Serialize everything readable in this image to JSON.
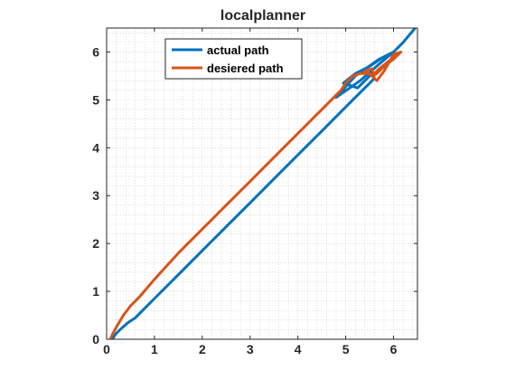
{
  "chart_data": {
    "type": "line",
    "title": "localplanner",
    "xlabel": "",
    "ylabel": "",
    "xlim": [
      0,
      6.5
    ],
    "ylim": [
      0,
      6.5
    ],
    "xticks": [
      "0",
      "1",
      "2",
      "3",
      "4",
      "5",
      "6"
    ],
    "yticks": [
      "0",
      "1",
      "2",
      "3",
      "4",
      "5",
      "6"
    ],
    "grid": "minor dotted",
    "legend_position": "top-left",
    "series": [
      {
        "name": "actual path",
        "color": "#0072BD",
        "points": [
          [
            0.12,
            0.0
          ],
          [
            0.15,
            0.05
          ],
          [
            0.2,
            0.12
          ],
          [
            0.3,
            0.22
          ],
          [
            0.45,
            0.35
          ],
          [
            0.6,
            0.45
          ],
          [
            0.7,
            0.55
          ],
          [
            1.0,
            0.85
          ],
          [
            1.5,
            1.35
          ],
          [
            2.0,
            1.85
          ],
          [
            2.5,
            2.35
          ],
          [
            3.0,
            2.85
          ],
          [
            3.5,
            3.35
          ],
          [
            4.0,
            3.85
          ],
          [
            4.5,
            4.35
          ],
          [
            4.8,
            4.65
          ],
          [
            5.0,
            4.85
          ],
          [
            5.2,
            5.05
          ],
          [
            5.5,
            5.35
          ],
          [
            5.6,
            5.45
          ],
          [
            5.55,
            5.55
          ],
          [
            5.25,
            5.25
          ],
          [
            4.95,
            5.35
          ],
          [
            5.2,
            5.55
          ],
          [
            5.5,
            5.7
          ],
          [
            5.8,
            5.9
          ],
          [
            6.0,
            6.0
          ],
          [
            5.7,
            5.85
          ],
          [
            5.2,
            5.5
          ],
          [
            4.8,
            5.05
          ],
          [
            5.3,
            5.4
          ],
          [
            5.7,
            5.75
          ],
          [
            6.0,
            6.0
          ],
          [
            6.2,
            6.2
          ],
          [
            6.45,
            6.5
          ]
        ]
      },
      {
        "name": "desiered path",
        "color": "#D95319",
        "points": [
          [
            0.08,
            0.0
          ],
          [
            0.12,
            0.1
          ],
          [
            0.2,
            0.25
          ],
          [
            0.35,
            0.5
          ],
          [
            0.5,
            0.7
          ],
          [
            0.7,
            0.9
          ],
          [
            1.0,
            1.25
          ],
          [
            1.5,
            1.8
          ],
          [
            2.0,
            2.3
          ],
          [
            2.5,
            2.8
          ],
          [
            3.0,
            3.3
          ],
          [
            3.5,
            3.8
          ],
          [
            4.0,
            4.3
          ],
          [
            4.5,
            4.8
          ],
          [
            4.9,
            5.2
          ],
          [
            5.0,
            5.35
          ],
          [
            5.15,
            5.5
          ],
          [
            5.3,
            5.55
          ],
          [
            5.5,
            5.55
          ],
          [
            5.6,
            5.45
          ],
          [
            5.55,
            5.65
          ],
          [
            5.4,
            5.6
          ],
          [
            5.55,
            5.5
          ],
          [
            5.65,
            5.55
          ],
          [
            5.8,
            5.7
          ],
          [
            6.0,
            5.85
          ],
          [
            6.15,
            6.0
          ],
          [
            6.0,
            5.95
          ],
          [
            5.8,
            5.6
          ],
          [
            5.65,
            5.4
          ],
          [
            5.55,
            5.5
          ],
          [
            5.7,
            5.65
          ],
          [
            5.95,
            5.85
          ],
          [
            6.15,
            6.0
          ]
        ]
      }
    ]
  }
}
